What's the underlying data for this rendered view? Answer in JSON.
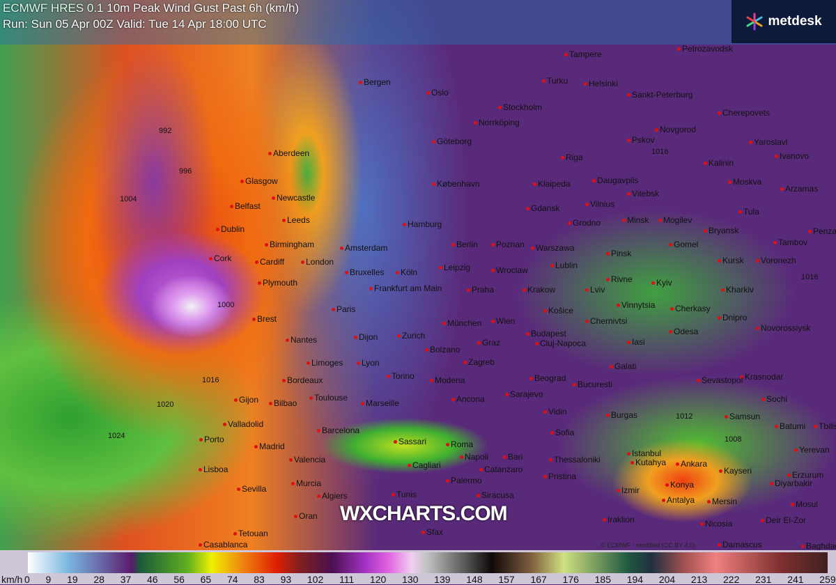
{
  "header": {
    "model": "ECMWF HRES 0.1",
    "title": "10m Peak Wind Gust Past 6h (km/h)",
    "run": "Run: Sun 05 Apr 00Z Valid: Tue 14 Apr 18:00 UTC"
  },
  "logo": {
    "text": "metdesk"
  },
  "watermark": "WXCHARTS.COM",
  "copyright": "© ECMWF · modified (CC BY 4.0)",
  "cities": [
    "Tampere",
    "Petrozavodsk",
    "Bergen",
    "Oslo",
    "Turku",
    "Helsinki",
    "Sankt-Peterburg",
    "Stockholm",
    "Cherepovets",
    "Norrköping",
    "Novgorod",
    "Göteborg",
    "Pskov",
    "Yaroslavl",
    "Ivanovo",
    "Aberdeen",
    "Riga",
    "Kalinin",
    "Moskva",
    "Glasgow",
    "Newcastle",
    "Klaipeda",
    "Daugavpils",
    "Vitebsk",
    "Arzamas",
    "Belfast",
    "Leeds",
    "København",
    "Vilnius",
    "Tula",
    "Dublin",
    "Gdansk",
    "Minsk",
    "Mogilev",
    "Bryansk",
    "Penza",
    "Birmingham",
    "Hamburg",
    "Grodno",
    "Tambov",
    "Cork",
    "Cardiff",
    "London",
    "Amsterdam",
    "Berlin",
    "Poznan",
    "Warszawa",
    "Pinsk",
    "Gomel",
    "Kursk",
    "Voronezh",
    "Plymouth",
    "Bruxelles",
    "Köln",
    "Leipzig",
    "Wroclaw",
    "Lublin",
    "Rivne",
    "Frankfurt am Main",
    "Praha",
    "Krakow",
    "Lviv",
    "Kyiv",
    "Kharkiv",
    "Paris",
    "Brest",
    "Nantes",
    "Vinnytsia",
    "Cherkasy",
    "Dnipro",
    "Dijon",
    "Zurich",
    "München",
    "Wien",
    "Košice",
    "Budapest",
    "Chernivtsi",
    "Novorossiysk",
    "Limoges",
    "Lyon",
    "Bolzano",
    "Graz",
    "Zagreb",
    "Cluj-Napoca",
    "Iasi",
    "Odesa",
    "Krasnodar",
    "Bordeaux",
    "Torino",
    "Modena",
    "Galati",
    "Sevastopol",
    "Gijon",
    "Bilbao",
    "Toulouse",
    "Marseille",
    "Ancona",
    "Sarajevo",
    "Beograd",
    "Bucuresti",
    "Sochi",
    "Valladolid",
    "Porto",
    "Barcelona",
    "Vidin",
    "Sofia",
    "Burgas",
    "Samsun",
    "Batumi",
    "Tbilisi",
    "Madrid",
    "Roma",
    "Sassari",
    "Napoli",
    "Bari",
    "Thessaloniki",
    "Istanbul",
    "Yerevan",
    "Lisboa",
    "Valencia",
    "Cagliari",
    "Catanzaro",
    "Pristina",
    "Kutahya",
    "Ankara",
    "Kayseri",
    "Erzurum",
    "Sevilla",
    "Murcia",
    "Palermo",
    "Izmir",
    "Konya",
    "Diyarbakir",
    "Siracusa",
    "Antalya",
    "Mersin",
    "Mosul",
    "Algiers",
    "Oran",
    "Tunis",
    "Iraklion",
    "Nicosia",
    "Deir El-Zor",
    "Tetouan",
    "Casablanca",
    "Sfax",
    "Damascus",
    "Baghdad"
  ],
  "isobars": [
    "992",
    "996",
    "1000",
    "1004",
    "1000",
    "1016",
    "1020",
    "1024",
    "1016",
    "1012",
    "1008",
    "1016",
    "1016"
  ],
  "legend": {
    "unit": "km/h",
    "ticks": [
      "0",
      "9",
      "19",
      "28",
      "37",
      "46",
      "56",
      "65",
      "74",
      "83",
      "93",
      "102",
      "111",
      "120",
      "130",
      "139",
      "148",
      "157",
      "167",
      "176",
      "185",
      "194",
      "204",
      "213",
      "222",
      "231",
      "241",
      "259"
    ]
  }
}
